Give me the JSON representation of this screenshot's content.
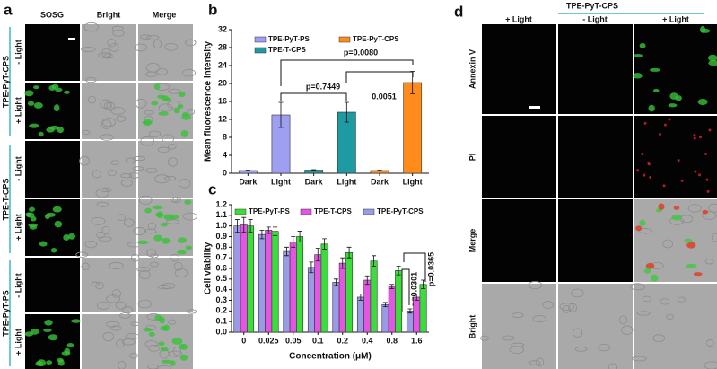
{
  "letters": [
    "a",
    "b",
    "c",
    "d"
  ],
  "panel_a": {
    "columns": [
      "SOSG",
      "Bright",
      "Merge"
    ],
    "groups": [
      "TPE-PyT-CPS",
      "TPE-T-CPS",
      "TPE-PyT-PS"
    ],
    "rows": [
      "- Light",
      "+ Light",
      "- Light",
      "+ Light",
      "- Light",
      "+ Light"
    ]
  },
  "panel_d": {
    "group": "TPE-PyT-CPS",
    "columns": [
      "+ Light",
      "- Light",
      "+ Light"
    ],
    "rows": [
      "Annexin V",
      "PI",
      "Merge",
      "Bright"
    ]
  },
  "chart_data": [
    {
      "type": "bar",
      "ylabel": "Mean fluorescence intensity",
      "categories": [
        "Dark",
        "Light",
        "Dark",
        "Light",
        "Dark",
        "Light"
      ],
      "series": [
        {
          "name": "TPE-PyT-PS",
          "color": "#9f9ff2",
          "values": [
            0.6,
            13,
            null,
            null,
            null,
            null
          ],
          "errors": [
            0.1,
            2.8,
            null,
            null,
            null,
            null
          ]
        },
        {
          "name": "TPE-T-CPS",
          "color": "#1e9aa2",
          "values": [
            null,
            null,
            0.7,
            13.6,
            null,
            null
          ],
          "errors": [
            null,
            null,
            0.1,
            2.2,
            null,
            null
          ]
        },
        {
          "name": "TPE-PyT-CPS",
          "color": "#ff8c1a",
          "values": [
            null,
            null,
            null,
            null,
            0.6,
            20.2
          ],
          "errors": [
            null,
            null,
            null,
            null,
            0.1,
            2.5
          ]
        }
      ],
      "annotations": [
        "p=0.7449",
        "0.0051",
        "p=0.0080"
      ],
      "ylim": [
        0,
        32
      ],
      "yticks": [
        0,
        4,
        8,
        12,
        16,
        20,
        24,
        28,
        32
      ]
    },
    {
      "type": "bar",
      "ylabel": "Cell viability",
      "xlabel": "Concentration (μM)",
      "categories": [
        "0",
        "0.025",
        "0.05",
        "0.1",
        "0.2",
        "0.4",
        "0.8",
        "1.6"
      ],
      "series": [
        {
          "name": "TPE-PyT-CPS",
          "color": "#9a9ae6",
          "values": [
            1.0,
            0.92,
            0.76,
            0.61,
            0.47,
            0.33,
            0.26,
            0.2
          ],
          "errors": [
            0.06,
            0.04,
            0.04,
            0.05,
            0.03,
            0.03,
            0.02,
            0.02
          ]
        },
        {
          "name": "TPE-T-CPS",
          "color": "#e455e4",
          "values": [
            1.01,
            0.96,
            0.85,
            0.73,
            0.65,
            0.49,
            0.43,
            0.33
          ],
          "errors": [
            0.07,
            0.03,
            0.05,
            0.06,
            0.05,
            0.04,
            0.02,
            0.03
          ]
        },
        {
          "name": "TPE-PyT-PS",
          "color": "#3bdc3b",
          "values": [
            1.0,
            0.95,
            0.9,
            0.83,
            0.75,
            0.67,
            0.58,
            0.45
          ],
          "errors": [
            0.06,
            0.04,
            0.05,
            0.05,
            0.05,
            0.05,
            0.04,
            0.04
          ]
        }
      ],
      "annotations": [
        "p=0.0301",
        "p=0.0365"
      ],
      "ylim": [
        0,
        1.2
      ],
      "yticks": [
        {
          "value": 0,
          "label": "0.0"
        },
        0.1,
        0.2,
        0.3,
        0.4,
        0.5,
        0.6,
        0.7,
        0.8,
        0.9,
        {
          "value": 1,
          "label": "1.0"
        },
        1.1,
        1.2
      ]
    }
  ]
}
